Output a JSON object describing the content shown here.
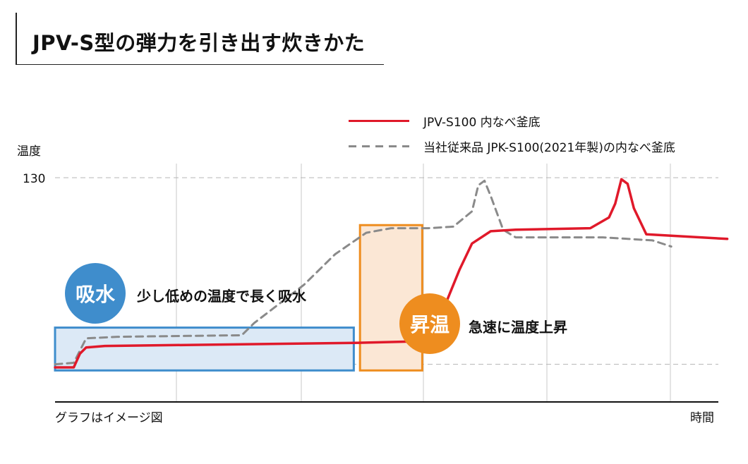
{
  "title": "JPV-S型の弾力を引き出す炊きかた",
  "chart_data": {
    "type": "line",
    "ylabel": "温度",
    "xlabel": "時間",
    "note": "グラフはイメージ図",
    "yticks": [
      "130"
    ],
    "ylim": [
      0,
      130
    ],
    "series": [
      {
        "name": "JPV-S100 内なべ釜底",
        "color": "#e0192a",
        "style": "solid",
        "points": [
          [
            0,
            6
          ],
          [
            3,
            6
          ],
          [
            4,
            15
          ],
          [
            5,
            19
          ],
          [
            8,
            20
          ],
          [
            48,
            22
          ],
          [
            58,
            23
          ],
          [
            60,
            26
          ],
          [
            62,
            40
          ],
          [
            65,
            70
          ],
          [
            67,
            87
          ],
          [
            70,
            95
          ],
          [
            74,
            96
          ],
          [
            86,
            97
          ],
          [
            89,
            104
          ],
          [
            90,
            113
          ],
          [
            91,
            129
          ],
          [
            92,
            126
          ],
          [
            93,
            110
          ],
          [
            95,
            93
          ],
          [
            108,
            90
          ]
        ]
      },
      {
        "name": "当社従来品 JPK-S100(2021年製)の内なべ釜底",
        "color": "#8a8a8a",
        "style": "dashed",
        "points": [
          [
            0,
            8
          ],
          [
            3,
            9
          ],
          [
            5,
            25
          ],
          [
            10,
            26
          ],
          [
            30,
            27
          ],
          [
            32,
            35
          ],
          [
            40,
            60
          ],
          [
            45,
            80
          ],
          [
            50,
            94
          ],
          [
            54,
            97
          ],
          [
            60,
            97
          ],
          [
            64,
            98
          ],
          [
            67,
            108
          ],
          [
            68,
            125
          ],
          [
            69,
            128
          ],
          [
            70,
            118
          ],
          [
            72,
            96
          ],
          [
            74,
            91
          ],
          [
            88,
            91
          ],
          [
            96,
            89
          ],
          [
            99,
            85
          ]
        ]
      }
    ],
    "phases": [
      {
        "badge": "吸水",
        "text": "少し低めの温度で長く吸水",
        "color": "#3f8dcc",
        "fill": "#dce9f6",
        "range": [
          0,
          48
        ],
        "temp_range": [
          4,
          32
        ]
      },
      {
        "badge": "昇温",
        "text": "急速に温度上昇",
        "color": "#ee8d1f",
        "fill": "#fbe7d5",
        "range": [
          49,
          59
        ],
        "temp_range": [
          4,
          99
        ]
      }
    ],
    "reference_temps": [
      130,
      8
    ],
    "xlim": [
      0,
      100
    ],
    "grid": "vertical"
  }
}
